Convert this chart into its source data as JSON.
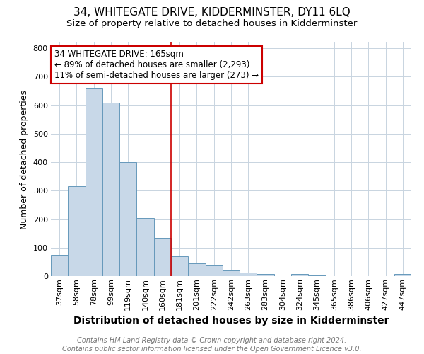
{
  "title": "34, WHITEGATE DRIVE, KIDDERMINSTER, DY11 6LQ",
  "subtitle": "Size of property relative to detached houses in Kidderminster",
  "xlabel": "Distribution of detached houses by size in Kidderminster",
  "ylabel": "Number of detached properties",
  "categories": [
    "37sqm",
    "58sqm",
    "78sqm",
    "99sqm",
    "119sqm",
    "140sqm",
    "160sqm",
    "181sqm",
    "201sqm",
    "222sqm",
    "242sqm",
    "263sqm",
    "283sqm",
    "304sqm",
    "324sqm",
    "345sqm",
    "365sqm",
    "386sqm",
    "406sqm",
    "427sqm",
    "447sqm"
  ],
  "values": [
    75,
    315,
    660,
    610,
    400,
    205,
    135,
    70,
    45,
    38,
    20,
    13,
    8,
    0,
    8,
    2,
    0,
    0,
    0,
    0,
    7
  ],
  "bar_color": "#c8d8e8",
  "bar_edge_color": "#6699bb",
  "red_line_x": 6.5,
  "red_line_color": "#cc0000",
  "annotation_line1": "34 WHITEGATE DRIVE: 165sqm",
  "annotation_line2": "← 89% of detached houses are smaller (2,293)",
  "annotation_line3": "11% of semi-detached houses are larger (273) →",
  "annotation_box_color": "#cc0000",
  "ylim": [
    0,
    820
  ],
  "yticks": [
    0,
    100,
    200,
    300,
    400,
    500,
    600,
    700,
    800
  ],
  "footer_line1": "Contains HM Land Registry data © Crown copyright and database right 2024.",
  "footer_line2": "Contains public sector information licensed under the Open Government Licence v3.0.",
  "bg_color": "#ffffff",
  "grid_color": "#c8d4e0",
  "title_fontsize": 11,
  "subtitle_fontsize": 9.5,
  "xlabel_fontsize": 10,
  "ylabel_fontsize": 9,
  "tick_fontsize": 8,
  "annotation_fontsize": 8.5,
  "footer_fontsize": 7
}
